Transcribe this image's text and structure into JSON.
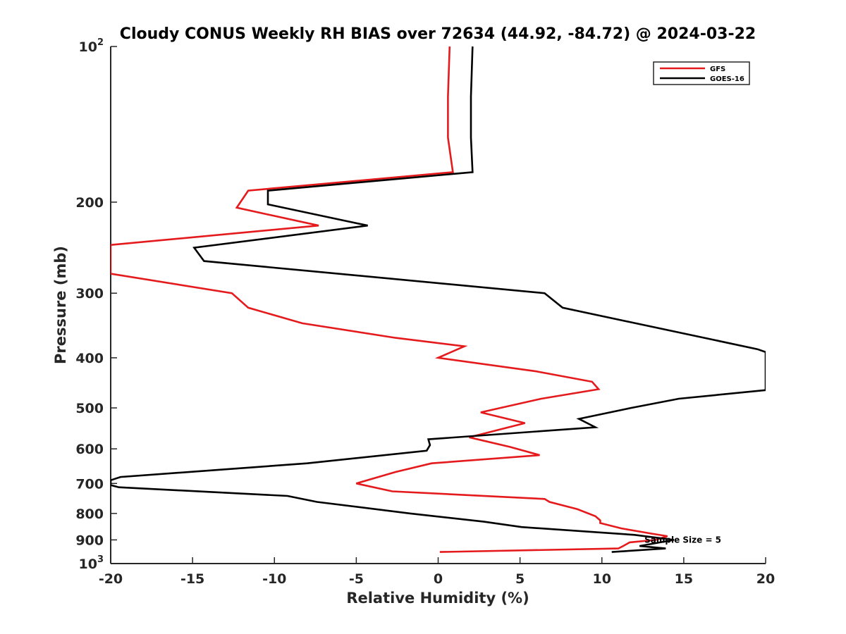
{
  "chart_data": {
    "type": "line",
    "title": "Cloudy CONUS Weekly RH BIAS over 72634 (44.92, -84.72) @ 2024-03-22",
    "xlabel": "Relative Humidity (%)",
    "ylabel": "Pressure (mb)",
    "xlim": [
      -20,
      20
    ],
    "ylim": [
      100,
      1000
    ],
    "y_scale": "log",
    "y_reversed": true,
    "grid": false,
    "legend_position": "top-right",
    "x_ticks": [
      -20,
      -15,
      -10,
      -5,
      0,
      5,
      10,
      15,
      20
    ],
    "x_tick_labels": [
      "-20",
      "-15",
      "-10",
      "-5",
      "0",
      "5",
      "10",
      "15",
      "20"
    ],
    "y_ticks": [
      100,
      200,
      300,
      400,
      500,
      600,
      700,
      800,
      900,
      1000
    ],
    "y_tick_labels": [
      {
        "base": "10",
        "exp": "2"
      },
      {
        "base": "200",
        "exp": ""
      },
      {
        "base": "300",
        "exp": ""
      },
      {
        "base": "400",
        "exp": ""
      },
      {
        "base": "500",
        "exp": ""
      },
      {
        "base": "600",
        "exp": ""
      },
      {
        "base": "700",
        "exp": ""
      },
      {
        "base": "800",
        "exp": ""
      },
      {
        "base": "900",
        "exp": ""
      },
      {
        "base": "10",
        "exp": "3"
      }
    ],
    "annotation": {
      "text": "Sample Size = 5",
      "x": 12.6,
      "y": 900
    },
    "series": [
      {
        "name": "GFS",
        "color": "#e41a1c",
        "points": [
          [
            0.7,
            100
          ],
          [
            0.6,
            125
          ],
          [
            0.6,
            150
          ],
          [
            0.9,
            175
          ],
          [
            -11.6,
            190
          ],
          [
            -12.3,
            205
          ],
          [
            -7.3,
            222
          ],
          [
            -20,
            242
          ],
          [
            -20,
            275
          ],
          [
            -12.6,
            300
          ],
          [
            -11.6,
            320
          ],
          [
            -8.3,
            343
          ],
          [
            -2.6,
            366
          ],
          [
            1.6,
            380
          ],
          [
            0.0,
            400
          ],
          [
            6.0,
            425
          ],
          [
            9.4,
            445
          ],
          [
            9.8,
            460
          ],
          [
            6.3,
            480
          ],
          [
            2.6,
            510
          ],
          [
            5.3,
            535
          ],
          [
            1.9,
            570
          ],
          [
            4.4,
            595
          ],
          [
            6.2,
            617
          ],
          [
            -0.4,
            640
          ],
          [
            -2.6,
            665
          ],
          [
            -5.0,
            700
          ],
          [
            -2.8,
            725
          ],
          [
            6.5,
            750
          ],
          [
            6.8,
            760
          ],
          [
            8.5,
            785
          ],
          [
            9.6,
            810
          ],
          [
            9.9,
            825
          ],
          [
            9.9,
            835
          ],
          [
            11.2,
            855
          ],
          [
            13.0,
            875
          ],
          [
            14.0,
            885
          ],
          [
            13.3,
            900
          ],
          [
            11.7,
            910
          ],
          [
            11.3,
            925
          ],
          [
            11.0,
            935
          ],
          [
            0.1,
            950
          ]
        ]
      },
      {
        "name": "GOES-16",
        "color": "#000000",
        "points": [
          [
            2.1,
            100
          ],
          [
            2.0,
            125
          ],
          [
            2.0,
            150
          ],
          [
            2.1,
            175
          ],
          [
            -10.4,
            190
          ],
          [
            -10.4,
            202
          ],
          [
            -4.3,
            222
          ],
          [
            -14.9,
            245
          ],
          [
            -14.3,
            260
          ],
          [
            6.5,
            300
          ],
          [
            7.6,
            320
          ],
          [
            19.5,
            385
          ],
          [
            20,
            390
          ],
          [
            20,
            462
          ],
          [
            14.7,
            480
          ],
          [
            11.8,
            500
          ],
          [
            8.6,
            525
          ],
          [
            9.6,
            545
          ],
          [
            -0.6,
            575
          ],
          [
            -0.5,
            590
          ],
          [
            -0.7,
            605
          ],
          [
            -8.0,
            640
          ],
          [
            -19.4,
            680
          ],
          [
            -20,
            690
          ],
          [
            -20,
            705
          ],
          [
            -19.5,
            712
          ],
          [
            -9.2,
            740
          ],
          [
            -7.4,
            760
          ],
          [
            -1.7,
            800
          ],
          [
            2.8,
            830
          ],
          [
            5.1,
            850
          ],
          [
            12.0,
            880
          ],
          [
            14.4,
            900
          ],
          [
            12.3,
            925
          ],
          [
            13.9,
            935
          ],
          [
            10.6,
            950
          ]
        ]
      }
    ]
  }
}
